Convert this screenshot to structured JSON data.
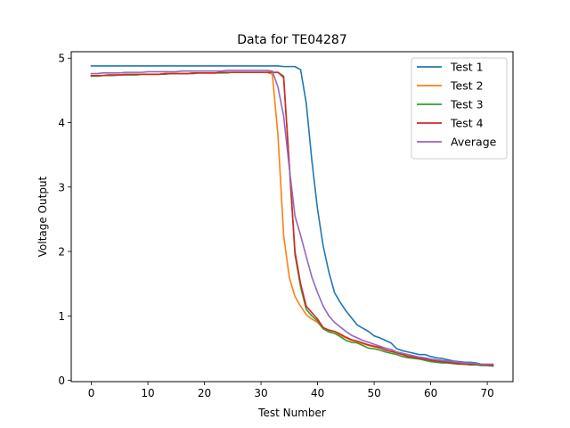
{
  "chart_data": {
    "type": "line",
    "title": "Data for TE04287",
    "xlabel": "Test Number",
    "ylabel": "Voltage Output",
    "xlim": [
      -3.55,
      74.55
    ],
    "ylim": [
      -0.02,
      5.1
    ],
    "xticks": [
      0,
      10,
      20,
      30,
      40,
      50,
      60,
      70
    ],
    "yticks": [
      0,
      1,
      2,
      3,
      4,
      5
    ],
    "grid": false,
    "legend_position": "top-right",
    "x": [
      0,
      1,
      2,
      3,
      4,
      5,
      6,
      7,
      8,
      9,
      10,
      11,
      12,
      13,
      14,
      15,
      16,
      17,
      18,
      19,
      20,
      21,
      22,
      23,
      24,
      25,
      26,
      27,
      28,
      29,
      30,
      31,
      32,
      33,
      34,
      35,
      36,
      37,
      38,
      39,
      40,
      41,
      42,
      43,
      44,
      45,
      46,
      47,
      48,
      49,
      50,
      51,
      52,
      53,
      54,
      55,
      56,
      57,
      58,
      59,
      60,
      61,
      62,
      63,
      64,
      65,
      66,
      67,
      68,
      69,
      70,
      71
    ],
    "series": [
      {
        "name": "Test 1",
        "color": "#1f77b4",
        "values": [
          4.88,
          4.88,
          4.88,
          4.88,
          4.88,
          4.88,
          4.88,
          4.88,
          4.88,
          4.88,
          4.88,
          4.88,
          4.88,
          4.88,
          4.88,
          4.88,
          4.88,
          4.88,
          4.88,
          4.88,
          4.88,
          4.88,
          4.88,
          4.88,
          4.88,
          4.88,
          4.88,
          4.88,
          4.88,
          4.88,
          4.88,
          4.88,
          4.88,
          4.88,
          4.87,
          4.87,
          4.87,
          4.82,
          4.3,
          3.4,
          2.65,
          2.08,
          1.68,
          1.36,
          1.21,
          1.08,
          0.97,
          0.86,
          0.81,
          0.76,
          0.69,
          0.66,
          0.62,
          0.58,
          0.49,
          0.46,
          0.44,
          0.42,
          0.4,
          0.4,
          0.37,
          0.35,
          0.34,
          0.32,
          0.3,
          0.29,
          0.28,
          0.28,
          0.27,
          0.25,
          0.25,
          0.25
        ]
      },
      {
        "name": "Test 2",
        "color": "#ff7f0e",
        "values": [
          4.73,
          4.73,
          4.73,
          4.74,
          4.74,
          4.74,
          4.75,
          4.75,
          4.75,
          4.75,
          4.75,
          4.75,
          4.75,
          4.76,
          4.76,
          4.76,
          4.76,
          4.76,
          4.77,
          4.77,
          4.77,
          4.77,
          4.77,
          4.78,
          4.78,
          4.78,
          4.78,
          4.78,
          4.78,
          4.78,
          4.78,
          4.78,
          4.75,
          3.8,
          2.25,
          1.6,
          1.3,
          1.15,
          1.02,
          0.95,
          0.9,
          0.8,
          0.76,
          0.73,
          0.7,
          0.66,
          0.62,
          0.6,
          0.57,
          0.54,
          0.52,
          0.5,
          0.47,
          0.45,
          0.42,
          0.4,
          0.38,
          0.36,
          0.35,
          0.33,
          0.31,
          0.3,
          0.29,
          0.28,
          0.27,
          0.26,
          0.25,
          0.25,
          0.24,
          0.24,
          0.23,
          0.23
        ]
      },
      {
        "name": "Test 3",
        "color": "#2ca02c",
        "values": [
          4.72,
          4.72,
          4.73,
          4.73,
          4.73,
          4.74,
          4.74,
          4.74,
          4.74,
          4.75,
          4.75,
          4.75,
          4.75,
          4.75,
          4.76,
          4.76,
          4.76,
          4.76,
          4.76,
          4.77,
          4.77,
          4.77,
          4.77,
          4.77,
          4.77,
          4.78,
          4.78,
          4.78,
          4.78,
          4.78,
          4.78,
          4.78,
          4.78,
          4.78,
          4.72,
          3.35,
          1.95,
          1.45,
          1.1,
          1.0,
          0.92,
          0.8,
          0.75,
          0.73,
          0.68,
          0.62,
          0.59,
          0.58,
          0.54,
          0.5,
          0.49,
          0.47,
          0.44,
          0.42,
          0.4,
          0.37,
          0.35,
          0.34,
          0.33,
          0.31,
          0.29,
          0.28,
          0.27,
          0.27,
          0.26,
          0.25,
          0.25,
          0.24,
          0.24,
          0.23,
          0.23,
          0.22
        ]
      },
      {
        "name": "Test 4",
        "color": "#d62728",
        "values": [
          4.73,
          4.73,
          4.73,
          4.74,
          4.74,
          4.74,
          4.75,
          4.75,
          4.75,
          4.75,
          4.75,
          4.75,
          4.75,
          4.76,
          4.76,
          4.76,
          4.76,
          4.76,
          4.77,
          4.77,
          4.77,
          4.77,
          4.77,
          4.78,
          4.78,
          4.78,
          4.78,
          4.78,
          4.78,
          4.78,
          4.78,
          4.78,
          4.78,
          4.78,
          4.7,
          3.35,
          2.0,
          1.5,
          1.15,
          1.05,
          0.95,
          0.82,
          0.78,
          0.76,
          0.72,
          0.67,
          0.63,
          0.61,
          0.58,
          0.55,
          0.53,
          0.51,
          0.47,
          0.45,
          0.43,
          0.4,
          0.37,
          0.36,
          0.34,
          0.33,
          0.31,
          0.3,
          0.29,
          0.28,
          0.27,
          0.26,
          0.25,
          0.25,
          0.25,
          0.24,
          0.24,
          0.23
        ]
      },
      {
        "name": "Average",
        "color": "#9467bd",
        "values": [
          4.76,
          4.76,
          4.77,
          4.77,
          4.77,
          4.77,
          4.78,
          4.78,
          4.78,
          4.78,
          4.79,
          4.79,
          4.79,
          4.79,
          4.79,
          4.79,
          4.8,
          4.8,
          4.8,
          4.8,
          4.8,
          4.8,
          4.8,
          4.8,
          4.81,
          4.81,
          4.81,
          4.81,
          4.81,
          4.81,
          4.81,
          4.81,
          4.8,
          4.55,
          4.1,
          3.3,
          2.55,
          2.25,
          1.92,
          1.6,
          1.36,
          1.15,
          1.0,
          0.9,
          0.83,
          0.76,
          0.7,
          0.66,
          0.62,
          0.59,
          0.56,
          0.53,
          0.5,
          0.48,
          0.44,
          0.42,
          0.4,
          0.38,
          0.36,
          0.35,
          0.33,
          0.32,
          0.31,
          0.3,
          0.29,
          0.28,
          0.27,
          0.27,
          0.26,
          0.25,
          0.25,
          0.25
        ]
      }
    ]
  }
}
